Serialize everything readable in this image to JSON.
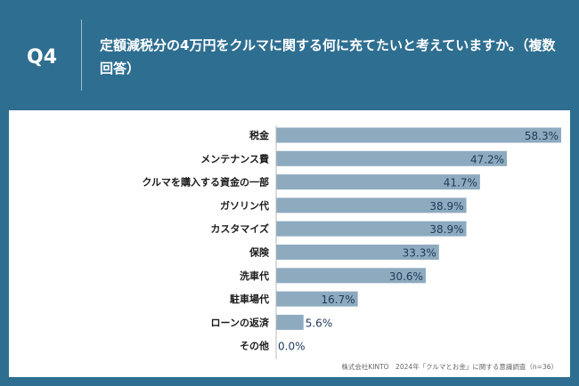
{
  "header": {
    "question_label": "Q4",
    "title": "定額減税分の4万円をクルマに関する何に充てたいと考えていますか。（複数回答）"
  },
  "footer": {
    "source": "株式会社KINTO　2024年「クルマとお金」に関する意識調査（n=36）",
    "logo": "KINTO"
  },
  "colors": {
    "background": "#2e6e91",
    "bar": "#8eaabf",
    "panel": "#ffffff"
  },
  "chart_data": {
    "type": "bar",
    "orientation": "horizontal",
    "categories": [
      "税金",
      "メンテナンス費",
      "クルマを購入する資金の一部",
      "ガソリン代",
      "カスタマイズ",
      "保険",
      "洗車代",
      "駐車場代",
      "ローンの返済",
      "その他"
    ],
    "values": [
      58.3,
      47.2,
      41.7,
      38.9,
      38.9,
      33.3,
      30.6,
      16.7,
      5.6,
      0.0
    ],
    "value_labels": [
      "58.3%",
      "47.2%",
      "41.7%",
      "38.9%",
      "38.9%",
      "33.3%",
      "30.6%",
      "16.7%",
      "5.6%",
      "0.0%"
    ],
    "xlim": [
      0,
      58.3
    ],
    "grid": false,
    "legend": "none"
  }
}
